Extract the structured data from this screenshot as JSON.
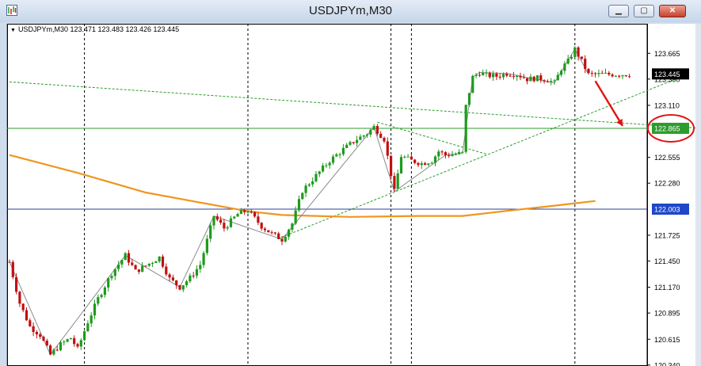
{
  "window": {
    "title": "USDJPYm,M30",
    "min_glyph": "▁",
    "max_glyph": "▢",
    "close_glyph": "✕"
  },
  "symbol_info": {
    "marker": "▼",
    "text": "USDJPYm,M30  123.471 123.483 123.426 123.445"
  },
  "chart_data": {
    "type": "candlestick",
    "symbol": "USDJPYm",
    "timeframe": "M30",
    "ohlc_header": {
      "open": 123.471,
      "high": 123.483,
      "low": 123.426,
      "close": 123.445
    },
    "y_ticks": [
      123.665,
      123.39,
      123.11,
      122.555,
      122.28,
      121.725,
      121.45,
      121.17,
      120.895,
      120.615,
      120.34
    ],
    "y_tick_labels": [
      "123.665",
      "123.390",
      "123.110",
      "122.555",
      "122.280",
      "121.725",
      "121.450",
      "121.170",
      "120.895",
      "120.615",
      "120.340"
    ],
    "ylim": [
      120.33,
      123.98
    ],
    "bar_count": 183,
    "period_separators": [
      22,
      70,
      112,
      118,
      166
    ],
    "price_markers": [
      {
        "label": "123.445",
        "value": 123.445,
        "bg": "#000000",
        "fg": "#ffffff"
      },
      {
        "label": "122.865",
        "value": 122.865,
        "bg": "#2c9c2c",
        "fg": "#ffffff"
      },
      {
        "label": "122.003",
        "value": 122.003,
        "bg": "#1f47c8",
        "fg": "#ffffff"
      }
    ],
    "horizontal_lines": [
      {
        "value": 122.865,
        "color": "#2c9c2c"
      },
      {
        "value": 122.003,
        "color": "#2b3c9c"
      }
    ],
    "trend_lines": [
      {
        "x1": 0,
        "y1": 123.36,
        "x2": 203,
        "y2": 122.865,
        "color": "#2c9c2c",
        "dashed": true
      },
      {
        "x1": 79,
        "y1": 121.69,
        "x2": 197,
        "y2": 123.41,
        "color": "#2c9c2c",
        "dashed": true
      },
      {
        "x1": 108,
        "y1": 122.93,
        "x2": 140,
        "y2": 122.59,
        "color": "#2c9c2c",
        "dashed": true
      }
    ],
    "moving_average": {
      "color": "#f0961e",
      "points": [
        [
          0,
          122.58
        ],
        [
          20,
          122.39
        ],
        [
          40,
          122.18
        ],
        [
          55,
          122.08
        ],
        [
          70,
          121.98
        ],
        [
          80,
          121.94
        ],
        [
          100,
          121.92
        ],
        [
          120,
          121.93
        ],
        [
          133,
          121.93
        ],
        [
          145,
          121.98
        ],
        [
          160,
          122.04
        ],
        [
          172,
          122.09
        ]
      ]
    },
    "zigzag": {
      "color": "#8a8a8a",
      "points": [
        [
          0,
          121.44
        ],
        [
          12,
          120.45
        ],
        [
          34,
          121.51
        ],
        [
          50,
          121.17
        ],
        [
          60,
          121.93
        ],
        [
          80,
          121.68
        ],
        [
          107,
          122.88
        ],
        [
          113,
          122.19
        ],
        [
          128,
          122.58
        ],
        [
          133,
          122.6
        ],
        [
          136,
          123.41
        ],
        [
          138,
          123.46
        ],
        [
          146,
          123.45
        ],
        [
          160,
          123.35
        ],
        [
          166,
          123.71
        ],
        [
          170,
          123.44
        ]
      ]
    },
    "anchors": [
      [
        0,
        121.44
      ],
      [
        3,
        121.0
      ],
      [
        6,
        120.75
      ],
      [
        9,
        120.66
      ],
      [
        12,
        120.45
      ],
      [
        15,
        120.56
      ],
      [
        18,
        120.63
      ],
      [
        20,
        120.51
      ],
      [
        23,
        120.8
      ],
      [
        26,
        121.05
      ],
      [
        30,
        121.32
      ],
      [
        34,
        121.51
      ],
      [
        37,
        121.34
      ],
      [
        40,
        121.4
      ],
      [
        44,
        121.49
      ],
      [
        47,
        121.26
      ],
      [
        50,
        121.17
      ],
      [
        53,
        121.27
      ],
      [
        56,
        121.41
      ],
      [
        60,
        121.93
      ],
      [
        63,
        121.8
      ],
      [
        67,
        121.95
      ],
      [
        70,
        121.99
      ],
      [
        74,
        121.82
      ],
      [
        77,
        121.74
      ],
      [
        80,
        121.68
      ],
      [
        83,
        121.85
      ],
      [
        86,
        122.2
      ],
      [
        90,
        122.36
      ],
      [
        94,
        122.52
      ],
      [
        98,
        122.64
      ],
      [
        102,
        122.75
      ],
      [
        105,
        122.81
      ],
      [
        107,
        122.88
      ],
      [
        110,
        122.75
      ],
      [
        113,
        122.19
      ],
      [
        115,
        122.57
      ],
      [
        118,
        122.52
      ],
      [
        121,
        122.49
      ],
      [
        124,
        122.52
      ],
      [
        126,
        122.62
      ],
      [
        128,
        122.58
      ],
      [
        131,
        122.59
      ],
      [
        133,
        122.6
      ],
      [
        134,
        123.1
      ],
      [
        136,
        123.41
      ],
      [
        138,
        123.46
      ],
      [
        140,
        123.43
      ],
      [
        143,
        123.42
      ],
      [
        146,
        123.45
      ],
      [
        149,
        123.44
      ],
      [
        152,
        123.39
      ],
      [
        155,
        123.4
      ],
      [
        158,
        123.38
      ],
      [
        160,
        123.35
      ],
      [
        162,
        123.5
      ],
      [
        164,
        123.58
      ],
      [
        166,
        123.71
      ],
      [
        168,
        123.58
      ],
      [
        170,
        123.44
      ]
    ],
    "annotations": [
      {
        "type": "red_arrow",
        "from": [
          172,
          123.37
        ],
        "to": [
          180,
          122.89
        ]
      },
      {
        "type": "red_ellipse",
        "around": "122.865"
      }
    ]
  }
}
